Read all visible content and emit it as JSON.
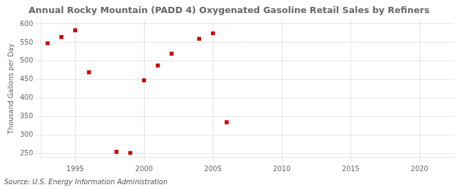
{
  "chart_data": {
    "type": "scatter",
    "title": "Annual Rocky Mountain (PADD 4) Oxygenated Gasoline Retail Sales by Refiners",
    "ylabel": "Thousand Gallons per Day",
    "annotation": "Source: U.S. Energy Information Administration",
    "x": [
      1993,
      1994,
      1995,
      1996,
      1998,
      1999,
      2000,
      2001,
      2002,
      2004,
      2005,
      2006
    ],
    "values": [
      548,
      565,
      583,
      470,
      255,
      252,
      448,
      488,
      520,
      560,
      575,
      335
    ],
    "color": "#cc0000",
    "marker": "square",
    "xlim": [
      1992.5,
      2022.5
    ],
    "ylim": [
      240,
      610
    ],
    "xticks": [
      1995,
      2000,
      2005,
      2010,
      2015,
      2020
    ],
    "yticks": [
      250,
      300,
      350,
      400,
      450,
      500,
      550,
      600
    ],
    "grid": true
  }
}
